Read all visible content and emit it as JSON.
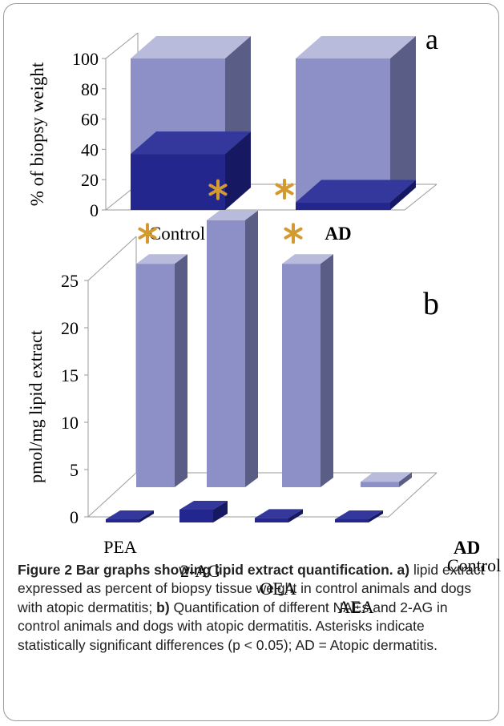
{
  "colors": {
    "light_front": "#8c90c6",
    "light_side": "#5a5e87",
    "light_top": "#b8bbdc",
    "dark_front": "#23268c",
    "dark_side": "#161961",
    "dark_top": "#34389d",
    "asterisk": "#d29a30",
    "axis": "#9a9a9a"
  },
  "chart_data": [
    {
      "type": "bar",
      "panel_label": "a",
      "ylabel": "% of biopsy weight",
      "ylim": [
        0,
        100
      ],
      "yticks": [
        "0",
        "20",
        "40",
        "60",
        "80",
        "100"
      ],
      "categories": [
        "Control",
        "AD"
      ],
      "stacked": true,
      "series": [
        {
          "values": [
            37,
            5
          ]
        },
        {
          "values": [
            63,
            95
          ]
        }
      ],
      "significant": [
        "AD"
      ],
      "significance_marker": "*"
    },
    {
      "type": "bar",
      "panel_label": "b",
      "ylabel": "pmol/mg lipid extract",
      "ylim": [
        0,
        25
      ],
      "yticks": [
        "0",
        "5",
        "10",
        "15",
        "20",
        "25"
      ],
      "categories": [
        "PEA",
        "2-AG",
        "OEA",
        "AEA"
      ],
      "series": [
        {
          "name": "AD",
          "values": [
            20.5,
            24.5,
            20.5,
            0.5
          ]
        },
        {
          "name": "Control",
          "values": [
            0.5,
            2.0,
            0.7,
            0.5
          ]
        }
      ],
      "significant": [
        "PEA",
        "2-AG",
        "OEA"
      ],
      "significance_marker": "*"
    }
  ],
  "caption": {
    "label": "Figure 2 Bar graphs showing lipid extract quantification.",
    "part_a_label": "a)",
    "part_a_text": "lipid extract expressed as percent of biopsy tissue weight in control animals and dogs with atopic dermatitis;",
    "part_b_label": "b)",
    "part_b_text": "Quantification of different NAEs and 2-AG in control animals and dogs with atopic dermatitis. Asterisks indicate statistically significant differences (p < 0.05); AD = Atopic dermatitis."
  }
}
